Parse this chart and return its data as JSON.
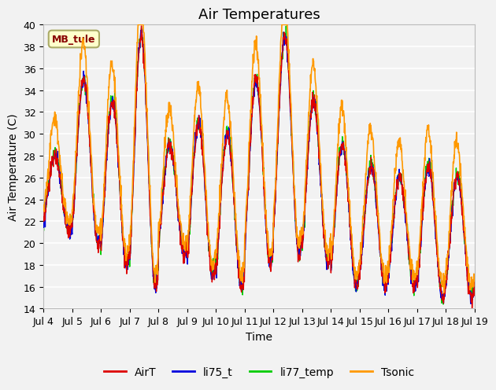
{
  "title": "Air Temperatures",
  "ylabel": "Air Temperature (C)",
  "xlabel": "Time",
  "ylim": [
    14,
    40
  ],
  "yticks": [
    14,
    16,
    18,
    20,
    22,
    24,
    26,
    28,
    30,
    32,
    34,
    36,
    38,
    40
  ],
  "xtick_labels": [
    "Jul 4",
    "Jul 5",
    "Jul 6",
    "Jul 7",
    "Jul 8",
    "Jul 9",
    "Jul 10",
    "Jul 11",
    "Jul 12",
    "Jul 13",
    "Jul 14",
    "Jul 15",
    "Jul 16",
    "Jul 17",
    "Jul 18",
    "Jul 19"
  ],
  "background_color": "#f2f2f2",
  "plot_bg_color": "#f2f2f2",
  "line_colors": {
    "AirT": "#dd0000",
    "li75_t": "#0000dd",
    "li77_temp": "#00cc00",
    "Tsonic": "#ff9900"
  },
  "legend_labels": [
    "AirT",
    "li75_t",
    "li77_temp",
    "Tsonic"
  ],
  "annotation_text": "MB_tule",
  "annotation_color": "#880000",
  "annotation_bg": "#ffffcc",
  "annotation_border": "#aaaa66",
  "title_fontsize": 13,
  "label_fontsize": 10,
  "tick_fontsize": 9,
  "legend_fontsize": 10
}
